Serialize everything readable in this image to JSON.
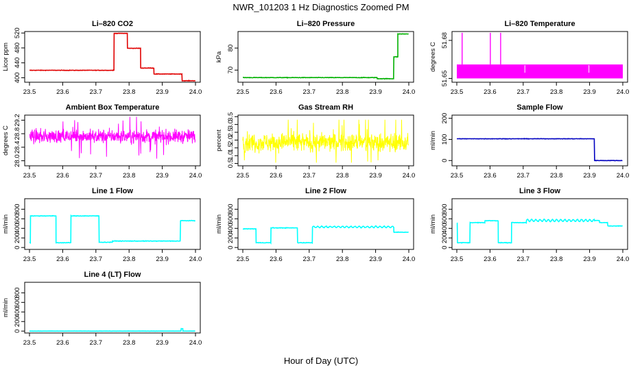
{
  "figure": {
    "title": "NWR_101203  1 Hz Diagnostics Zoomed PM",
    "xlabel": "Hour of Day (UTC)"
  },
  "chart_data": [
    {
      "type": "line",
      "id": "co2",
      "title": "Li–820 CO2",
      "ylabel": "Licor ppm",
      "color": "#e00000",
      "xlim": [
        23.5,
        24.0
      ],
      "ylim": [
        388,
        524
      ],
      "yticks": [
        400,
        440,
        480,
        520
      ],
      "xticks": [
        23.5,
        23.6,
        23.7,
        23.8,
        23.9,
        24.0
      ],
      "noise": 0.8,
      "x_start": 23.5,
      "x_end": 24.0,
      "segments": [
        [
          23.5,
          23.755,
          420
        ],
        [
          23.755,
          23.795,
          519
        ],
        [
          23.795,
          23.835,
          479
        ],
        [
          23.835,
          23.875,
          426
        ],
        [
          23.875,
          23.96,
          410
        ],
        [
          23.96,
          24.0,
          392
        ]
      ]
    },
    {
      "type": "line",
      "id": "pressure",
      "title": "Li–820 Pressure",
      "ylabel": "kPa",
      "color": "#00b000",
      "xlim": [
        23.5,
        24.0
      ],
      "ylim": [
        64.5,
        87.5
      ],
      "yticks": [
        70,
        80
      ],
      "xticks": [
        23.5,
        23.6,
        23.7,
        23.8,
        23.9,
        24.0
      ],
      "noise": 0.15,
      "x_start": 23.5,
      "x_end": 24.0,
      "segments": [
        [
          23.5,
          23.905,
          66.6
        ],
        [
          23.905,
          23.955,
          66.1
        ],
        [
          23.955,
          23.967,
          76
        ],
        [
          23.967,
          24.0,
          86.4
        ]
      ]
    },
    {
      "type": "band",
      "id": "temperature",
      "title": "Li–820 Temperature",
      "ylabel": "degrees C",
      "color": "#ff00ff",
      "xlim": [
        23.5,
        24.0
      ],
      "ylim": [
        51.647,
        51.687
      ],
      "yticks": [
        51.65,
        51.68
      ],
      "xticks": [
        23.5,
        23.6,
        23.7,
        23.8,
        23.9,
        24.0
      ],
      "band": [
        51.65,
        51.661
      ],
      "spikes": [
        23.516,
        23.601,
        23.632
      ],
      "spike_top": 51.686
    },
    {
      "type": "noise",
      "id": "ambient",
      "title": "Ambient Box Temperature",
      "ylabel": "degrees C",
      "color": "#ff00ff",
      "xlim": [
        23.5,
        24.0
      ],
      "ylim": [
        27.85,
        29.35
      ],
      "yticks": [
        28.0,
        28.4,
        28.8,
        29.2
      ],
      "xticks": [
        23.5,
        23.6,
        23.7,
        23.8,
        23.9,
        24.0
      ],
      "mean": 28.72,
      "spread": 0.14,
      "min": 27.9,
      "max": 29.3,
      "x_start": 23.5,
      "x_end": 24.0
    },
    {
      "type": "noise",
      "id": "rh",
      "title": "Gas Stream RH",
      "ylabel": "percent",
      "color": "#ffff00",
      "xlim": [
        23.5,
        24.0
      ],
      "ylim": [
        0.35,
        3.6
      ],
      "yticks": [
        0.5,
        1.0,
        1.5,
        2.0,
        2.5,
        3.0,
        3.5
      ],
      "xticks": [
        23.5,
        23.6,
        23.7,
        23.8,
        23.9,
        24.0
      ],
      "mean": 1.85,
      "spread": 0.42,
      "min": 0.55,
      "max": 3.3,
      "x_start": 23.5,
      "x_end": 24.0
    },
    {
      "type": "line",
      "id": "sample",
      "title": "Sample Flow",
      "ylabel": "ml/min",
      "color": "#0000c0",
      "xlim": [
        23.5,
        24.0
      ],
      "ylim": [
        -25,
        215
      ],
      "yticks": [
        0,
        100,
        200
      ],
      "xticks": [
        23.5,
        23.6,
        23.7,
        23.8,
        23.9,
        24.0
      ],
      "noise": 1.2,
      "x_start": 23.5,
      "x_end": 24.0,
      "segments": [
        [
          23.5,
          23.915,
          103
        ],
        [
          23.915,
          24.0,
          0
        ]
      ]
    },
    {
      "type": "line",
      "id": "line1",
      "title": "Line 1 Flow",
      "ylabel": "ml/min",
      "color": "#00ffff",
      "xlim": [
        23.5,
        24.0
      ],
      "ylim": [
        -40,
        1020
      ],
      "yticks": [
        0,
        200,
        400,
        600,
        800
      ],
      "xticks": [
        23.5,
        23.6,
        23.7,
        23.8,
        23.9,
        24.0
      ],
      "noise": 8,
      "x_start": 23.5,
      "x_end": 24.0,
      "segments": [
        [
          23.5,
          23.503,
          100
        ],
        [
          23.503,
          23.58,
          660
        ],
        [
          23.58,
          23.625,
          100
        ],
        [
          23.625,
          23.71,
          660
        ],
        [
          23.71,
          23.75,
          110
        ],
        [
          23.75,
          23.955,
          135
        ],
        [
          23.955,
          24.0,
          560
        ]
      ]
    },
    {
      "type": "line",
      "id": "line2",
      "title": "Line 2 Flow",
      "ylabel": "ml/min",
      "color": "#00ffff",
      "xlim": [
        23.5,
        24.0
      ],
      "ylim": [
        -40,
        1020
      ],
      "yticks": [
        0,
        200,
        400,
        600,
        800
      ],
      "xticks": [
        23.5,
        23.6,
        23.7,
        23.8,
        23.9,
        24.0
      ],
      "noise": 8,
      "x_start": 23.5,
      "x_end": 24.0,
      "segments": [
        [
          23.5,
          23.54,
          390
        ],
        [
          23.54,
          23.585,
          100
        ],
        [
          23.585,
          23.665,
          410
        ],
        [
          23.665,
          23.71,
          100
        ],
        [
          23.71,
          23.955,
          430,
          15
        ],
        [
          23.955,
          24.0,
          320
        ]
      ]
    },
    {
      "type": "line",
      "id": "line3",
      "title": "Line 3 Flow",
      "ylabel": "ml/min",
      "color": "#00ffff",
      "xlim": [
        23.5,
        24.0
      ],
      "ylim": [
        -40,
        1020
      ],
      "yticks": [
        0,
        200,
        400,
        600,
        800
      ],
      "xticks": [
        23.5,
        23.6,
        23.7,
        23.8,
        23.9,
        24.0
      ],
      "noise": 8,
      "x_start": 23.5,
      "x_end": 24.0,
      "segments": [
        [
          23.5,
          23.502,
          500
        ],
        [
          23.502,
          23.54,
          100
        ],
        [
          23.54,
          23.585,
          520
        ],
        [
          23.585,
          23.625,
          560
        ],
        [
          23.625,
          23.665,
          100
        ],
        [
          23.665,
          23.71,
          520
        ],
        [
          23.71,
          23.915,
          565,
          22
        ],
        [
          23.915,
          23.93,
          565
        ],
        [
          23.93,
          23.955,
          520
        ],
        [
          23.955,
          24.0,
          450
        ]
      ]
    },
    {
      "type": "line",
      "id": "line4",
      "title": "Line 4 (LT) Flow",
      "ylabel": "ml/min",
      "color": "#00ffff",
      "xlim": [
        23.5,
        24.0
      ],
      "ylim": [
        -40,
        1020
      ],
      "yticks": [
        0,
        200,
        400,
        600,
        800
      ],
      "xticks": [
        23.5,
        23.6,
        23.7,
        23.8,
        23.9,
        24.0
      ],
      "noise": 2,
      "x_start": 23.5,
      "x_end": 24.0,
      "segments": [
        [
          23.5,
          23.957,
          0
        ],
        [
          23.957,
          23.962,
          50
        ],
        [
          23.962,
          24.0,
          0
        ]
      ]
    }
  ]
}
